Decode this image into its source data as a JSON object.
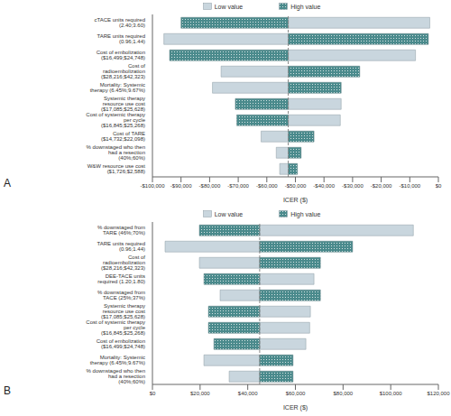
{
  "chart_data": [
    {
      "type": "bar",
      "title": "A",
      "orientation": "horizontal",
      "xlabel": "ICER ($)",
      "grid": false,
      "categories": [
        "cTACE units required (2.40;3.60)",
        "TARE units required (0.96;1.44)",
        "Cost of embolization ($16,499;$24,748)",
        "Cost of radioembolization ($28,216;$42,323)",
        "Mortality: Systemic therapy (6.45%;9.67%)",
        "Systemic therapy resource use cost ($17,085;$25,628)",
        "Cost of systemic therapy per cycle ($16,845;$25,268)",
        "Cost of TARE ($14,732;$22,098)",
        "% downstaged who then had a resection (40%;60%)",
        "W&W resource use cost ($1,726;$2,588)"
      ],
      "base": -52500,
      "series": [
        {
          "name": "Low value",
          "color": "#c9d6de",
          "values": [
            -3000,
            -96000,
            -8000,
            -76000,
            -79000,
            -34000,
            -34300,
            -62000,
            -56700,
            -55500
          ]
        },
        {
          "name": "High value",
          "color": "#4a8a8c",
          "marker": "dots",
          "values": [
            -90000,
            -3500,
            -94000,
            -27500,
            -34000,
            -71000,
            -70500,
            -43500,
            -48000,
            -49300
          ]
        }
      ],
      "xlim": [
        -100000,
        0
      ],
      "xticks": [
        {
          "value": -100000,
          "label": "-$100,000"
        },
        {
          "value": -90000,
          "label": "-$90,000"
        },
        {
          "value": -80000,
          "label": "-$80,000"
        },
        {
          "value": -70000,
          "label": "-$70,000"
        },
        {
          "value": -60000,
          "label": "-$60,000"
        },
        {
          "value": -50000,
          "label": "-$50,000"
        },
        {
          "value": -40000,
          "label": "-$40,000"
        },
        {
          "value": -30000,
          "label": "-$30,000"
        },
        {
          "value": -20000,
          "label": "-$20,000"
        },
        {
          "value": -10000,
          "label": "-$10,000"
        },
        {
          "value": 0,
          "label": "$0"
        }
      ]
    },
    {
      "type": "bar",
      "title": "B",
      "orientation": "horizontal",
      "xlabel": "ICER ($)",
      "grid": false,
      "categories": [
        "% downstaged from TARE (46%;70%)",
        "TARE units required (0.96;1.44)",
        "Cost of radioembolization ($28,216;$42,323)",
        "DEE-TACE units required (1.20;1.80)",
        "% downstaged from TACE (25%;37%)",
        "Systemic therapy resource use cost ($17,085;$25,628)",
        "Cost of systemic therapy per cycle ($16,845;$25,268)",
        "Cost of embolization ($16,499;$24,748)",
        "Mortality: Systemic therapy (6.45%;9.67%)",
        "% downstaged who then had a resection (40%;60%)"
      ],
      "base": 45000,
      "series": [
        {
          "name": "Low value",
          "color": "#c9d6de",
          "values": [
            109500,
            5300,
            19700,
            67800,
            28400,
            66300,
            66000,
            64400,
            21600,
            32200
          ]
        },
        {
          "name": "High value",
          "color": "#4a8a8c",
          "marker": "dots",
          "values": [
            19700,
            84000,
            70500,
            21600,
            70500,
            23500,
            23500,
            25800,
            59000,
            59000
          ]
        }
      ],
      "xlim": [
        0,
        120000
      ],
      "xticks": [
        {
          "value": 0,
          "label": "$0"
        },
        {
          "value": 20000,
          "label": "$20,000"
        },
        {
          "value": 40000,
          "label": "$40,000"
        },
        {
          "value": 60000,
          "label": "$60,000"
        },
        {
          "value": 80000,
          "label": "$80,000"
        },
        {
          "value": 100000,
          "label": "$100,000"
        },
        {
          "value": 120000,
          "label": "$120,000"
        }
      ]
    }
  ]
}
